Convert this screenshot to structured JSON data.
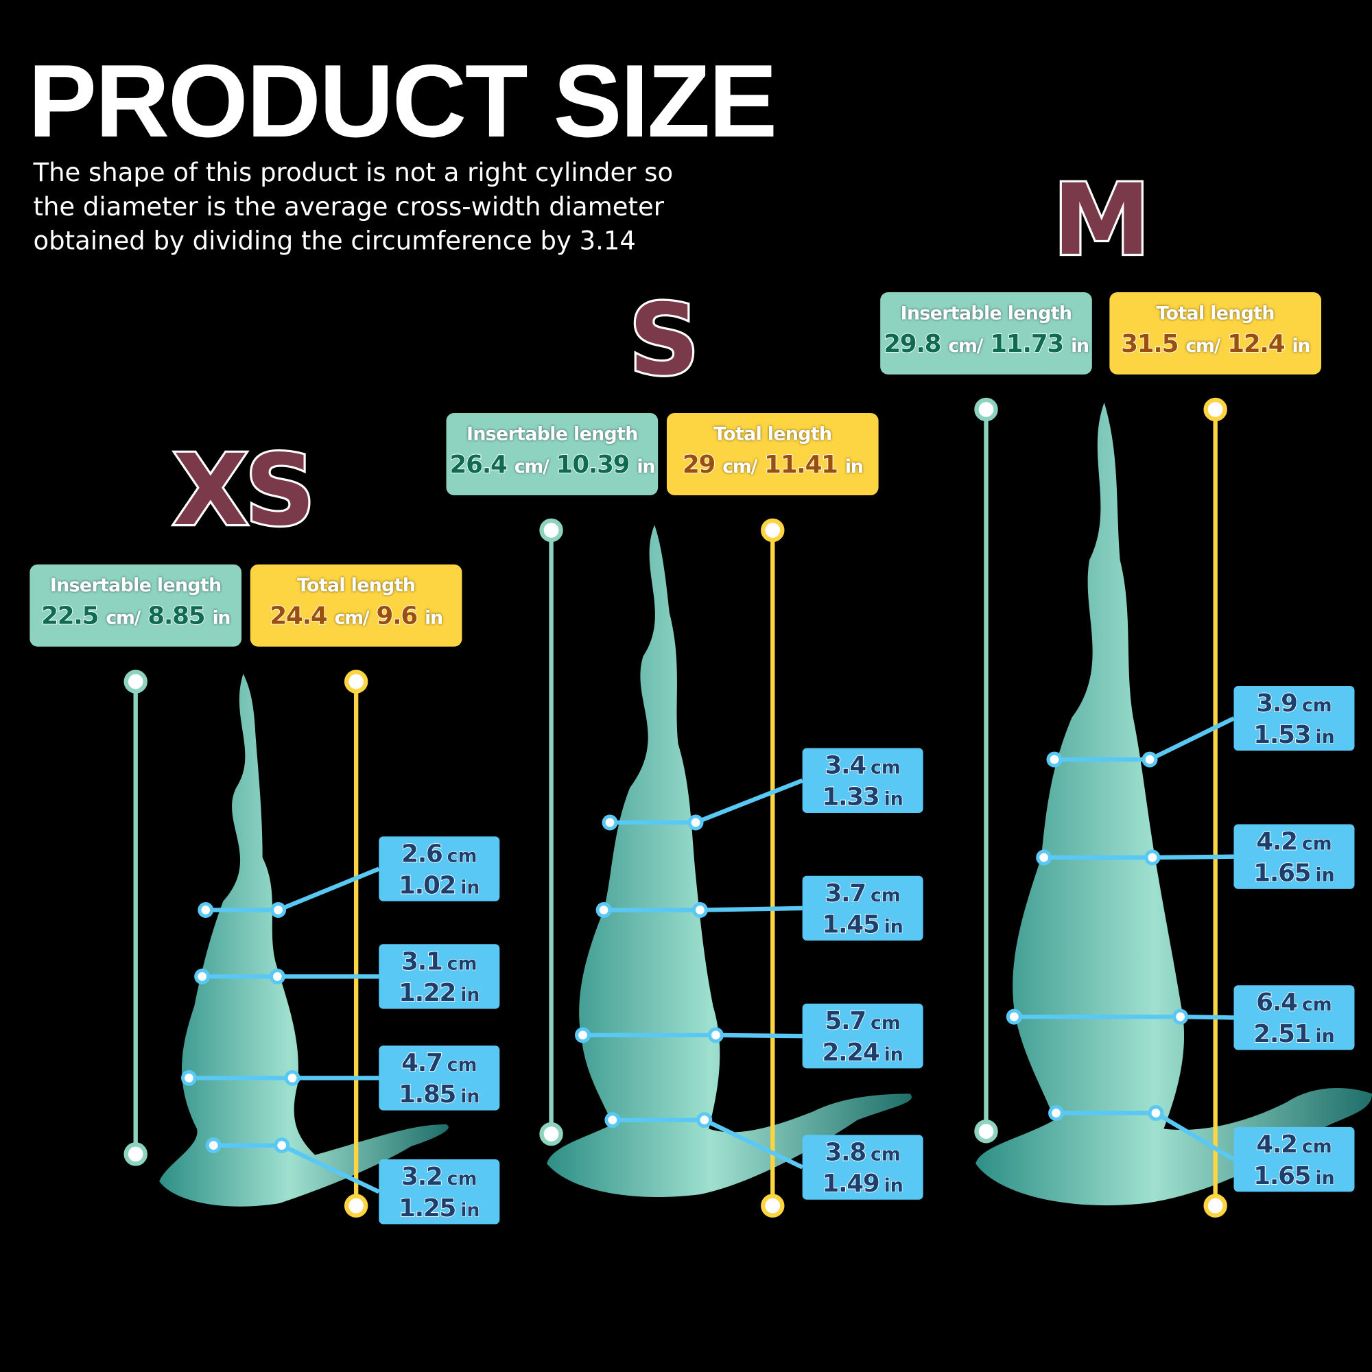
{
  "title": "PRODUCT SIZE",
  "subtitle": [
    "The shape of this product is not a right cylinder so",
    "the diameter is the average cross-width diameter",
    "obtained by dividing the circumference by 3.14"
  ],
  "labels": {
    "insertable": "Insertable length",
    "total": "Total length",
    "cm": "cm",
    "cm_slash": "cm/",
    "in": "in"
  },
  "colors": {
    "insertable": "#8dd3c0",
    "total": "#fdd442",
    "diameter": "#5ac8f5",
    "size_letter": "#7a3a4a",
    "product": "#4fb7a6"
  },
  "sizes": [
    {
      "name": "XS",
      "insertable": {
        "cm": "22.5",
        "in": "8.85"
      },
      "total": {
        "cm": "24.4",
        "in": "9.6"
      },
      "diameters": [
        {
          "cm": "2.6",
          "in": "1.02"
        },
        {
          "cm": "3.1",
          "in": "1.22"
        },
        {
          "cm": "4.7",
          "in": "1.85"
        },
        {
          "cm": "3.2",
          "in": "1.25"
        }
      ]
    },
    {
      "name": "S",
      "insertable": {
        "cm": "26.4",
        "in": "10.39"
      },
      "total": {
        "cm": "29",
        "in": "11.41"
      },
      "diameters": [
        {
          "cm": "3.4",
          "in": "1.33"
        },
        {
          "cm": "3.7",
          "in": "1.45"
        },
        {
          "cm": "5.7",
          "in": "2.24"
        },
        {
          "cm": "3.8",
          "in": "1.49"
        }
      ]
    },
    {
      "name": "M",
      "insertable": {
        "cm": "29.8",
        "in": "11.73"
      },
      "total": {
        "cm": "31.5",
        "in": "12.4"
      },
      "diameters": [
        {
          "cm": "3.9",
          "in": "1.53"
        },
        {
          "cm": "4.2",
          "in": "1.65"
        },
        {
          "cm": "6.4",
          "in": "2.51"
        },
        {
          "cm": "4.2",
          "in": "1.65"
        }
      ]
    }
  ]
}
